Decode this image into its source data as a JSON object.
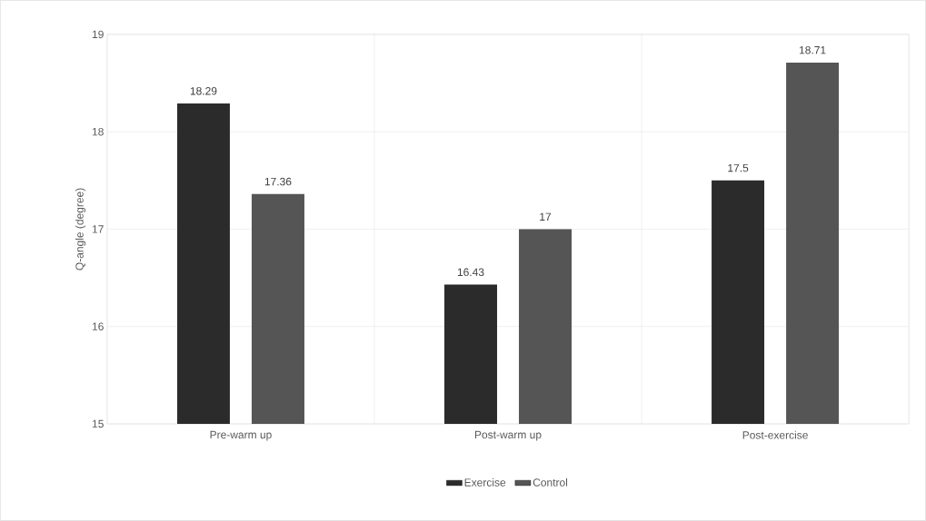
{
  "chart_data": {
    "type": "bar",
    "ylabel": "Q-angle (degree)",
    "categories": [
      "Pre-warm up",
      "Post-warm up",
      "Post-exercise"
    ],
    "series": [
      {
        "name": "Exercise",
        "color": "#2b2b2b",
        "values": [
          18.29,
          16.43,
          17.5
        ]
      },
      {
        "name": "Control",
        "color": "#555555",
        "values": [
          17.36,
          17,
          18.71
        ]
      }
    ],
    "ylim": [
      15,
      19
    ],
    "yticks": [
      15,
      16,
      17,
      18,
      19
    ],
    "grid": true,
    "legend": "bottom",
    "data_labels": true
  }
}
